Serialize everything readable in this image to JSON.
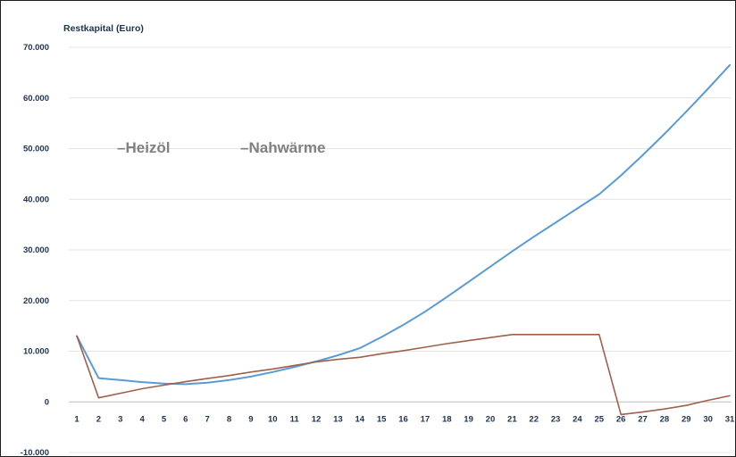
{
  "chart_data": {
    "type": "line",
    "ylabel": "Restkapital  (Euro)",
    "xlabel": "",
    "x": [
      1,
      2,
      3,
      4,
      5,
      6,
      7,
      8,
      9,
      10,
      11,
      12,
      13,
      14,
      15,
      16,
      17,
      18,
      19,
      20,
      21,
      22,
      23,
      24,
      25,
      26,
      27,
      28,
      29,
      30,
      31
    ],
    "ylim": [
      -10000,
      70000
    ],
    "yticks": [
      -10000,
      0,
      10000,
      20000,
      30000,
      40000,
      50000,
      60000,
      70000
    ],
    "ytick_labels": [
      "-10.000",
      "0",
      "10.000",
      "20.000",
      "30.000",
      "40.000",
      "50.000",
      "60.000",
      "70.000"
    ],
    "grid": true,
    "legend_position": "upper-left inside plot",
    "series": [
      {
        "name": "Heizöl",
        "color": "#5b9bd5",
        "values": [
          13000,
          4700,
          4300,
          3900,
          3600,
          3500,
          3800,
          4300,
          5000,
          5900,
          6900,
          8000,
          9200,
          10600,
          12800,
          15200,
          17800,
          20700,
          23700,
          26700,
          29700,
          32600,
          35400,
          38200,
          41000,
          44700,
          48700,
          52900,
          57300,
          61800,
          66500
        ]
      },
      {
        "name": "Nahwärme",
        "color": "#a0604a",
        "values": [
          13000,
          800,
          1700,
          2600,
          3300,
          4000,
          4600,
          5200,
          5900,
          6500,
          7200,
          7900,
          8400,
          8800,
          9500,
          10100,
          10800,
          11500,
          12100,
          12700,
          13300,
          13300,
          13300,
          13300,
          13300,
          -2500,
          -2000,
          -1400,
          -700,
          300,
          1200
        ]
      }
    ]
  }
}
